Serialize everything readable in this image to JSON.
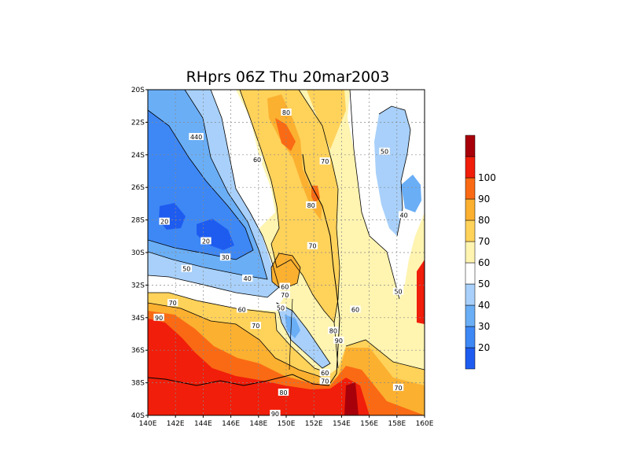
{
  "chart_data": {
    "type": "heatmap",
    "title": "RHprs 06Z Thu 20mar2003",
    "x_ticks": [
      "140E",
      "142E",
      "144E",
      "146E",
      "148E",
      "150E",
      "152E",
      "154E",
      "156E",
      "158E",
      "160E"
    ],
    "y_ticks": [
      "20S",
      "22S",
      "24S",
      "26S",
      "28S",
      "30S",
      "32S",
      "34S",
      "36S",
      "38S",
      "40S"
    ],
    "xlim": [
      140,
      160
    ],
    "ylim": [
      -40,
      -20
    ],
    "grid": true,
    "colorbar": {
      "levels": [
        20,
        30,
        40,
        50,
        60,
        70,
        80,
        90,
        100
      ],
      "labels": [
        "20",
        "30",
        "40",
        "50",
        "60",
        "70",
        "80",
        "90",
        "100"
      ],
      "colors": [
        "#1e5cf0",
        "#3e88f5",
        "#6aaef6",
        "#a8d0fa",
        "#ffffff",
        "#fff4b0",
        "#ffd25a",
        "#fbb030",
        "#fa6a14",
        "#f01e0a",
        "#a8000a"
      ]
    },
    "contour_labels": [
      {
        "text": "80",
        "lon": 150.0,
        "lat": -21.4
      },
      {
        "text": "440",
        "lon": 143.5,
        "lat": -22.9
      },
      {
        "text": "60",
        "lon": 147.9,
        "lat": -24.3
      },
      {
        "text": "70",
        "lon": 152.8,
        "lat": -24.4
      },
      {
        "text": "50",
        "lon": 157.1,
        "lat": -23.8
      },
      {
        "text": "80",
        "lon": 151.8,
        "lat": -27.1
      },
      {
        "text": "40",
        "lon": 158.5,
        "lat": -27.7
      },
      {
        "text": "20",
        "lon": 141.2,
        "lat": -28.1
      },
      {
        "text": "20",
        "lon": 144.2,
        "lat": -29.3
      },
      {
        "text": "70",
        "lon": 151.9,
        "lat": -29.6
      },
      {
        "text": "30",
        "lon": 145.6,
        "lat": -30.3
      },
      {
        "text": "50",
        "lon": 142.8,
        "lat": -31.0
      },
      {
        "text": "40",
        "lon": 147.2,
        "lat": -31.6
      },
      {
        "text": "60",
        "lon": 149.9,
        "lat": -32.1
      },
      {
        "text": "70",
        "lon": 149.9,
        "lat": -32.6
      },
      {
        "text": "50",
        "lon": 158.1,
        "lat": -32.4
      },
      {
        "text": "70",
        "lon": 141.8,
        "lat": -33.1
      },
      {
        "text": "60",
        "lon": 146.8,
        "lat": -33.5
      },
      {
        "text": "50",
        "lon": 149.6,
        "lat": -33.4
      },
      {
        "text": "60",
        "lon": 155.0,
        "lat": -33.5
      },
      {
        "text": "90",
        "lon": 140.8,
        "lat": -34.0
      },
      {
        "text": "70",
        "lon": 147.8,
        "lat": -34.5
      },
      {
        "text": "80",
        "lon": 153.4,
        "lat": -34.8
      },
      {
        "text": "90",
        "lon": 153.8,
        "lat": -35.4
      },
      {
        "text": "60",
        "lon": 152.8,
        "lat": -37.4
      },
      {
        "text": "70",
        "lon": 152.8,
        "lat": -37.9
      },
      {
        "text": "70",
        "lon": 158.1,
        "lat": -38.3
      },
      {
        "text": "80",
        "lon": 149.8,
        "lat": -38.6
      },
      {
        "text": "90",
        "lon": 149.2,
        "lat": -39.9
      }
    ]
  }
}
